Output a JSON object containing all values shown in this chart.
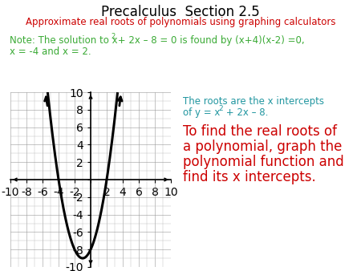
{
  "title": "Precalculus  Section 2.5",
  "subtitle": "Approximate real roots of polynomials using graphing calculators",
  "note_color": "#3aaa35",
  "subtitle_color": "#cc0000",
  "title_color": "#000000",
  "roots_text_color": "#2196a0",
  "big_text_color": "#cc0000",
  "big_text_lines": [
    "To find the real roots of",
    "a polynomial, graph the",
    "polynomial function and",
    "find its x intercepts."
  ],
  "background_color": "#ffffff"
}
